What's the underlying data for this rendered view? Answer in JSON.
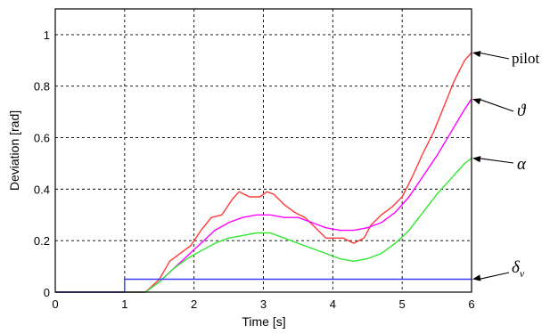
{
  "chart_data": {
    "type": "line",
    "xlabel": "Time [s]",
    "ylabel": "Deviation [rad]",
    "xlim": [
      0,
      6
    ],
    "ylim": [
      0,
      1.1
    ],
    "x_ticks": [
      "0",
      "1",
      "2",
      "3",
      "4",
      "5",
      "6"
    ],
    "y_ticks": [
      "0",
      "0.2",
      "0.4",
      "0.6",
      "0.8",
      "1"
    ],
    "grid": true,
    "annotations": [
      {
        "label": "pilot",
        "points_to_series": 0
      },
      {
        "label": "ϑ",
        "points_to_series": 1
      },
      {
        "label": "α",
        "points_to_series": 2
      },
      {
        "label": "δ",
        "subscript": "v",
        "points_to_series": 3
      }
    ],
    "series": [
      {
        "color": "#ff3a3a",
        "x": [
          0,
          1.0,
          1.3,
          1.5,
          1.65,
          1.8,
          1.95,
          2.1,
          2.25,
          2.4,
          2.55,
          2.65,
          2.8,
          2.95,
          3.05,
          3.15,
          3.3,
          3.45,
          3.6,
          3.75,
          3.9,
          4.0,
          4.15,
          4.3,
          4.45,
          4.55,
          4.7,
          4.85,
          5.0,
          5.15,
          5.3,
          5.45,
          5.6,
          5.75,
          5.9,
          6.0
        ],
        "y": [
          0,
          0,
          0.0,
          0.05,
          0.12,
          0.15,
          0.18,
          0.24,
          0.29,
          0.3,
          0.36,
          0.39,
          0.37,
          0.37,
          0.39,
          0.38,
          0.34,
          0.31,
          0.29,
          0.25,
          0.21,
          0.21,
          0.21,
          0.19,
          0.21,
          0.26,
          0.3,
          0.33,
          0.37,
          0.45,
          0.54,
          0.62,
          0.72,
          0.82,
          0.9,
          0.93
        ]
      },
      {
        "color": "#ff00ff",
        "x": [
          0,
          1.0,
          1.3,
          1.5,
          1.7,
          1.9,
          2.1,
          2.3,
          2.5,
          2.7,
          2.9,
          3.1,
          3.3,
          3.5,
          3.7,
          3.9,
          4.1,
          4.3,
          4.5,
          4.7,
          4.9,
          5.1,
          5.3,
          5.5,
          5.7,
          5.9,
          6.0
        ],
        "y": [
          0,
          0,
          0.0,
          0.04,
          0.09,
          0.14,
          0.19,
          0.24,
          0.27,
          0.29,
          0.3,
          0.3,
          0.29,
          0.29,
          0.27,
          0.25,
          0.24,
          0.24,
          0.25,
          0.27,
          0.31,
          0.37,
          0.45,
          0.53,
          0.62,
          0.71,
          0.75
        ]
      },
      {
        "color": "#2ee82e",
        "x": [
          0,
          1.0,
          1.3,
          1.5,
          1.7,
          1.9,
          2.1,
          2.3,
          2.5,
          2.7,
          2.9,
          3.1,
          3.3,
          3.5,
          3.7,
          3.9,
          4.1,
          4.3,
          4.5,
          4.7,
          4.9,
          5.1,
          5.3,
          5.5,
          5.7,
          5.9,
          6.0
        ],
        "y": [
          0,
          0,
          0.0,
          0.04,
          0.09,
          0.13,
          0.16,
          0.19,
          0.21,
          0.22,
          0.23,
          0.23,
          0.21,
          0.19,
          0.17,
          0.15,
          0.13,
          0.12,
          0.13,
          0.15,
          0.19,
          0.24,
          0.31,
          0.38,
          0.44,
          0.5,
          0.52
        ]
      },
      {
        "color": "#3a3aff",
        "x": [
          0,
          1.0,
          1.0,
          6.0
        ],
        "y": [
          0,
          0,
          0.05,
          0.05
        ]
      }
    ]
  }
}
